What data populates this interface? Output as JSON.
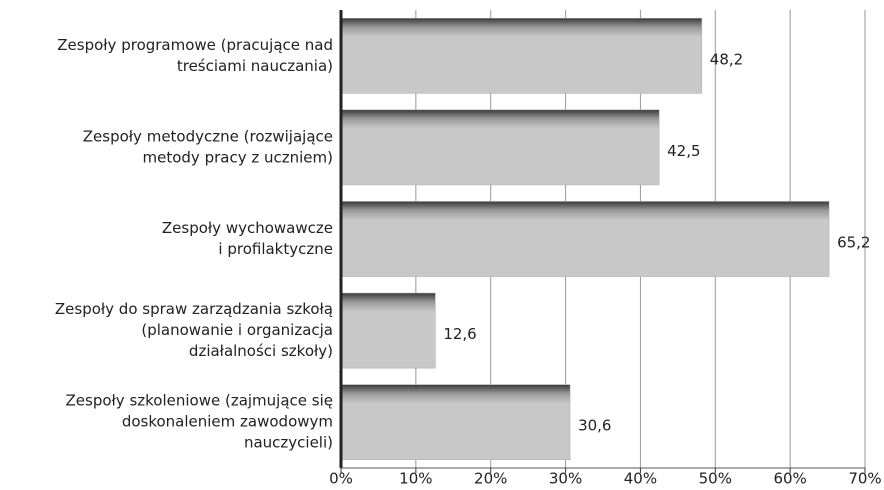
{
  "chart_data": {
    "type": "bar",
    "orientation": "horizontal",
    "categories": [
      [
        "Zespoły programowe (pracujące nad",
        "treściami nauczania)"
      ],
      [
        "Zespoły metodyczne (rozwijające",
        "metody pracy z uczniem)"
      ],
      [
        "Zespoły wychowawcze",
        "i profilaktyczne"
      ],
      [
        "Zespoły do spraw zarządzania szkołą",
        "(planowanie i organizacja",
        "działalności szkoły)"
      ],
      [
        "Zespoły szkoleniowe (zajmujące się",
        "doskonaleniem zawodowym",
        "nauczycieli)"
      ]
    ],
    "values": [
      48.2,
      42.5,
      65.2,
      12.6,
      30.6
    ],
    "value_labels": [
      "48,2",
      "42,5",
      "65,2",
      "12,6",
      "30,6"
    ],
    "color": "#c8c8c8",
    "xlim": [
      0,
      70
    ],
    "xticks": [
      {
        "value": 0,
        "label": "0%"
      },
      {
        "value": 10,
        "label": "10%"
      },
      {
        "value": 20,
        "label": "20%"
      },
      {
        "value": 30,
        "label": "30%"
      },
      {
        "value": 40,
        "label": "40%"
      },
      {
        "value": 50,
        "label": "50%"
      },
      {
        "value": 60,
        "label": "60%"
      },
      {
        "value": 70,
        "label": "70%"
      }
    ],
    "grid": true
  }
}
